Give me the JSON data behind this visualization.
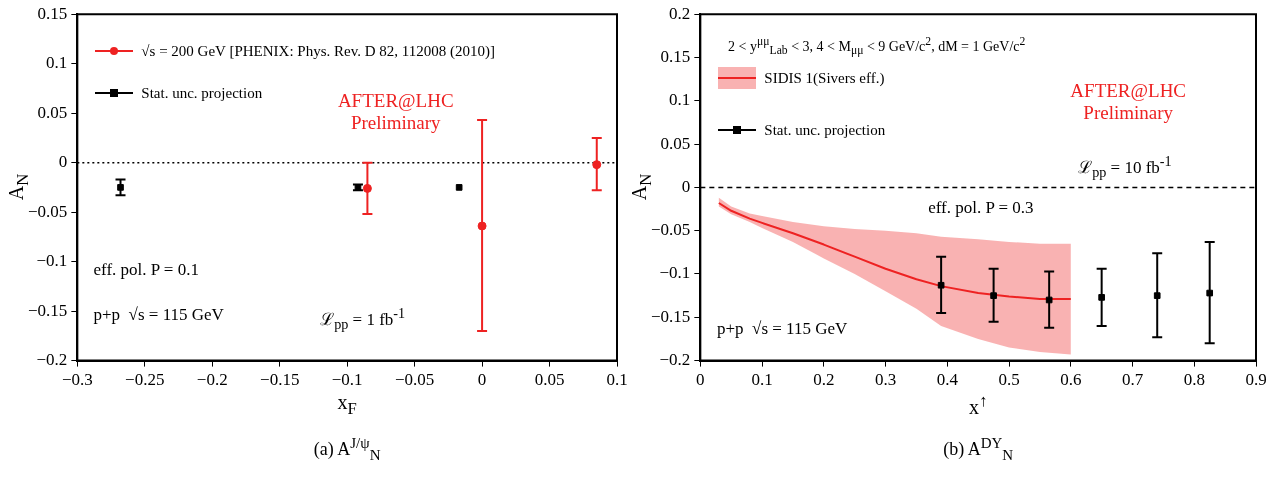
{
  "chart_data": [
    {
      "type": "scatter",
      "title": "(a) A$^{J/ψ}$$_{N}$",
      "xlabel": "x$_{F}$",
      "ylabel": "A$_{N}$",
      "xlim": [
        -0.3,
        0.1
      ],
      "xticks": [
        -0.3,
        -0.25,
        -0.2,
        -0.15,
        -0.1,
        -0.05,
        0,
        0.05,
        0.1
      ],
      "ylim": [
        -0.2,
        0.15
      ],
      "yticks": [
        -0.2,
        -0.15,
        -0.1,
        -0.05,
        0,
        0.05,
        0.1,
        0.15
      ],
      "legend": "top left",
      "grid": false,
      "ref_lines": [
        {
          "axis": "y",
          "value": 0,
          "line_style": "dotted",
          "color": "#000000"
        }
      ],
      "annotations": [
        "AFTER@LHC\nPreliminary",
        "eff. pol. P = 0.1",
        "p+p  √s = 115 GeV",
        "ℒ$_{pp}$ = 1 fb$^{-1}$"
      ],
      "series": [
        {
          "name": "√s = 200 GeV [PHENIX: Phys. Rev. D 82, 112008 (2010)]",
          "color": "#ee2222",
          "marker": "circle",
          "x": [
            -0.085,
            0,
            0.085
          ],
          "values": [
            -0.026,
            -0.064,
            -0.002
          ],
          "errors": [
            [
              -0.052,
              0
            ],
            [
              -0.17,
              0.043
            ],
            [
              -0.028,
              0.025
            ]
          ]
        },
        {
          "name": "Stat. unc. projection",
          "color": "#000000",
          "marker": "square",
          "x": [
            -0.268,
            -0.092,
            -0.017
          ],
          "values": [
            -0.025,
            -0.025,
            -0.025
          ],
          "errors": [
            [
              -0.033,
              -0.017
            ],
            [
              -0.028,
              -0.022
            ],
            null
          ]
        }
      ]
    },
    {
      "type": "scatter",
      "title": "(b) A$^{DY}$$_{N}$",
      "xlabel": "x$^{↑}$",
      "ylabel": "A$_{N}$",
      "xlim": [
        0,
        0.9
      ],
      "xticks": [
        0,
        0.1,
        0.2,
        0.3,
        0.4,
        0.5,
        0.6,
        0.7,
        0.8,
        0.9
      ],
      "ylim": [
        -0.2,
        0.2
      ],
      "yticks": [
        -0.2,
        -0.15,
        -0.1,
        -0.05,
        0,
        0.05,
        0.1,
        0.15,
        0.2
      ],
      "legend": "top left",
      "grid": false,
      "ref_lines": [
        {
          "axis": "y",
          "value": 0,
          "line_style": "dashed",
          "color": "#000000"
        }
      ],
      "annotations": [
        "2 < y$^{μμ}$$_{Lab}$ < 3, 4 < M$_{μμ}$ < 9 GeV/c$^{2}$, dM = 1 GeV/c$^{2}$",
        "AFTER@LHC\nPreliminary",
        "ℒ$_{pp}$ = 10 fb$^{-1}$",
        "eff. pol. P = 0.3",
        "p+p  √s = 115 GeV"
      ],
      "series": [
        {
          "name": "SIDIS 1(Sivers eff.)",
          "type": "line",
          "color": "#ee2222",
          "x": [
            0.03,
            0.05,
            0.08,
            0.1,
            0.15,
            0.2,
            0.25,
            0.3,
            0.35,
            0.39,
            0.45,
            0.5,
            0.55,
            0.6
          ],
          "values": [
            -0.018,
            -0.027,
            -0.036,
            -0.041,
            -0.053,
            -0.066,
            -0.08,
            -0.094,
            -0.106,
            -0.114,
            -0.122,
            -0.126,
            -0.129,
            -0.129
          ],
          "upper": [
            -0.012,
            -0.022,
            -0.03,
            -0.033,
            -0.04,
            -0.045,
            -0.048,
            -0.05,
            -0.053,
            -0.057,
            -0.06,
            -0.063,
            -0.065,
            -0.065
          ],
          "lower": [
            -0.022,
            -0.031,
            -0.04,
            -0.047,
            -0.063,
            -0.082,
            -0.1,
            -0.12,
            -0.14,
            -0.16,
            -0.175,
            -0.185,
            -0.19,
            -0.193
          ]
        },
        {
          "name": "Stat. unc. projection",
          "color": "#000000",
          "marker": "square",
          "x": [
            0.39,
            0.475,
            0.565,
            0.65,
            0.74,
            0.825
          ],
          "values": [
            -0.113,
            -0.125,
            -0.13,
            -0.127,
            -0.125,
            -0.122
          ],
          "errors": [
            [
              -0.145,
              -0.08
            ],
            [
              -0.155,
              -0.094
            ],
            [
              -0.162,
              -0.097
            ],
            [
              -0.16,
              -0.094
            ],
            [
              -0.173,
              -0.076
            ],
            [
              -0.18,
              -0.063
            ]
          ]
        }
      ]
    }
  ]
}
